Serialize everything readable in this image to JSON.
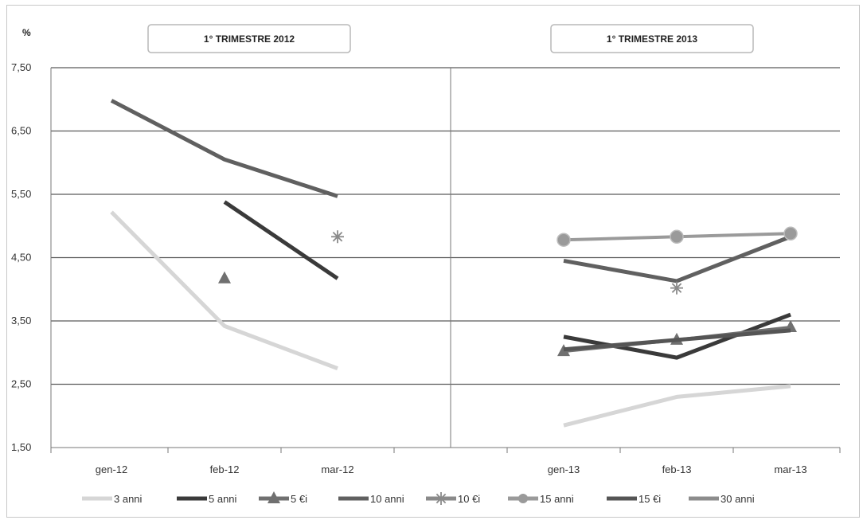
{
  "chart_data": {
    "type": "line",
    "ylabel": "%",
    "ylim": [
      1.5,
      7.5
    ],
    "yticks": [
      "7,50",
      "6,50",
      "5,50",
      "4,50",
      "3,50",
      "2,50",
      "1,50"
    ],
    "ytick_values": [
      7.5,
      6.5,
      5.5,
      4.5,
      3.5,
      2.5,
      1.5
    ],
    "grid": true,
    "legend_position": "bottom",
    "panels": [
      {
        "title": "1° TRIMESTRE 2012",
        "categories": [
          "gen-12",
          "feb-12",
          "mar-12"
        ]
      },
      {
        "title": "1° TRIMESTRE 2013",
        "categories": [
          "gen-13",
          "feb-13",
          "mar-13"
        ]
      }
    ],
    "series": [
      {
        "name": "3 anni",
        "color": "#d6d6d6",
        "marker": "none",
        "values": [
          5.22,
          3.42,
          2.75,
          1.85,
          2.3,
          2.47
        ]
      },
      {
        "name": "5 anni",
        "color": "#3a3a3a",
        "marker": "none",
        "values": [
          null,
          5.38,
          4.17,
          3.25,
          2.92,
          3.6
        ]
      },
      {
        "name": "5 €i",
        "color": "#707070",
        "marker": "triangle",
        "values": [
          null,
          4.17,
          null,
          3.02,
          3.2,
          3.4
        ]
      },
      {
        "name": "10 anni",
        "color": "#606060",
        "marker": "none",
        "values": [
          6.98,
          6.05,
          5.47,
          4.45,
          4.13,
          4.83
        ]
      },
      {
        "name": "10 €i",
        "color": "#8a8a8a",
        "marker": "star",
        "values": [
          null,
          null,
          4.83,
          null,
          4.02,
          null
        ]
      },
      {
        "name": "15 anni",
        "color": "#9a9a9a",
        "marker": "circle",
        "values": [
          null,
          null,
          null,
          4.78,
          4.83,
          4.88
        ]
      },
      {
        "name": "15 €i",
        "color": "#555555",
        "marker": "none",
        "values": [
          null,
          null,
          null,
          3.05,
          3.2,
          3.35
        ]
      },
      {
        "name": "30 anni",
        "color": "#8c8c8c",
        "marker": "none",
        "values": [
          null,
          null,
          null,
          null,
          null,
          3.3
        ]
      }
    ]
  }
}
